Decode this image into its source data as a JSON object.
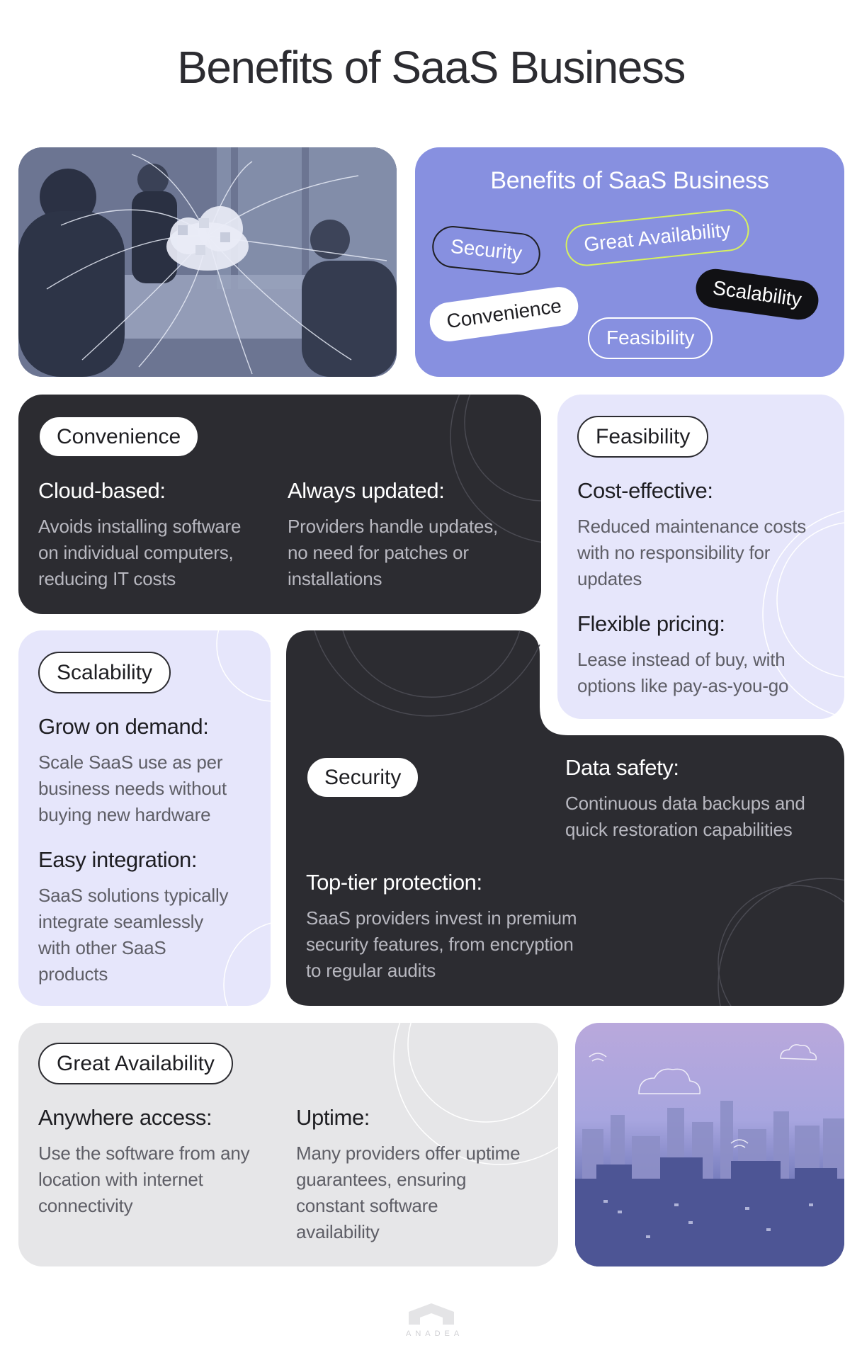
{
  "page": {
    "title": "Benefits of SaaS Business",
    "logo_text": "ANADEA"
  },
  "hero": {
    "photo_icon": "cloud-network-icon",
    "card_title": "Benefits of SaaS Business",
    "chips": [
      "Security",
      "Great Availability",
      "Scalability",
      "Convenience",
      "Feasibility"
    ]
  },
  "convenience": {
    "tag": "Convenience",
    "items": [
      {
        "heading": "Cloud-based:",
        "lines": [
          "Avoids installing software",
          "on individual computers,",
          "reducing IT costs"
        ]
      },
      {
        "heading": "Always updated:",
        "lines": [
          "Providers handle updates,",
          "no need for patches or",
          "installations"
        ]
      }
    ]
  },
  "feasibility": {
    "tag": "Feasibility",
    "items": [
      {
        "heading": "Cost-effective:",
        "lines": [
          "Reduced maintenance costs",
          "with no responsibility for",
          "updates"
        ]
      },
      {
        "heading": "Flexible pricing:",
        "lines": [
          "Lease instead of buy, with",
          "options like pay-as-you-go"
        ]
      }
    ]
  },
  "scalability": {
    "tag": "Scalability",
    "items": [
      {
        "heading": "Grow on demand:",
        "lines": [
          "Scale SaaS use as per",
          "business needs without",
          "buying new hardware"
        ]
      },
      {
        "heading": "Easy integration:",
        "lines": [
          "SaaS solutions typically",
          "integrate seamlessly",
          "with other SaaS",
          "products"
        ]
      }
    ]
  },
  "security": {
    "tag": "Security",
    "items": [
      {
        "heading": "Data safety:",
        "lines": [
          "Continuous data backups and",
          "quick restoration capabilities"
        ]
      },
      {
        "heading": "Top-tier protection:",
        "lines": [
          "SaaS providers invest in premium",
          "security features, from encryption",
          "to regular audits"
        ]
      }
    ]
  },
  "availability": {
    "tag": "Great Availability",
    "items": [
      {
        "heading": "Anywhere access:",
        "lines": [
          "Use the software from any",
          "location with internet",
          "connectivity"
        ]
      },
      {
        "heading": "Uptime:",
        "lines": [
          "Many providers offer uptime",
          "guarantees, ensuring",
          "constant software",
          "availability"
        ]
      }
    ]
  },
  "colors": {
    "dark": "#2c2c31",
    "lavender": "#e6e6fb",
    "purple": "#8790e0",
    "grey": "#e6e6e8",
    "lime": "#d7f25d"
  }
}
